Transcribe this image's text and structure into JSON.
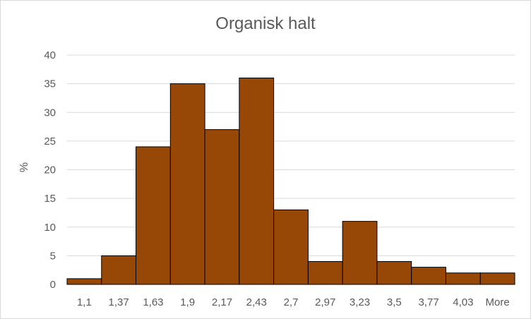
{
  "chart_data": {
    "type": "bar",
    "title": "Organisk halt",
    "xlabel": "",
    "ylabel": "%",
    "categories": [
      "1,1",
      "1,37",
      "1,63",
      "1,9",
      "2,17",
      "2,43",
      "2,7",
      "2,97",
      "3,23",
      "3,5",
      "3,77",
      "4,03",
      "More"
    ],
    "values": [
      1,
      5,
      24,
      35,
      27,
      36,
      13,
      4,
      11,
      4,
      3,
      2,
      2
    ],
    "ylim": [
      0,
      40
    ],
    "yticks": [
      0,
      5,
      10,
      15,
      20,
      25,
      30,
      35,
      40
    ],
    "grid": true,
    "legend": "none",
    "bar_color": "#974706",
    "bar_border": "#000000",
    "grid_color": "#d9d9d9"
  }
}
